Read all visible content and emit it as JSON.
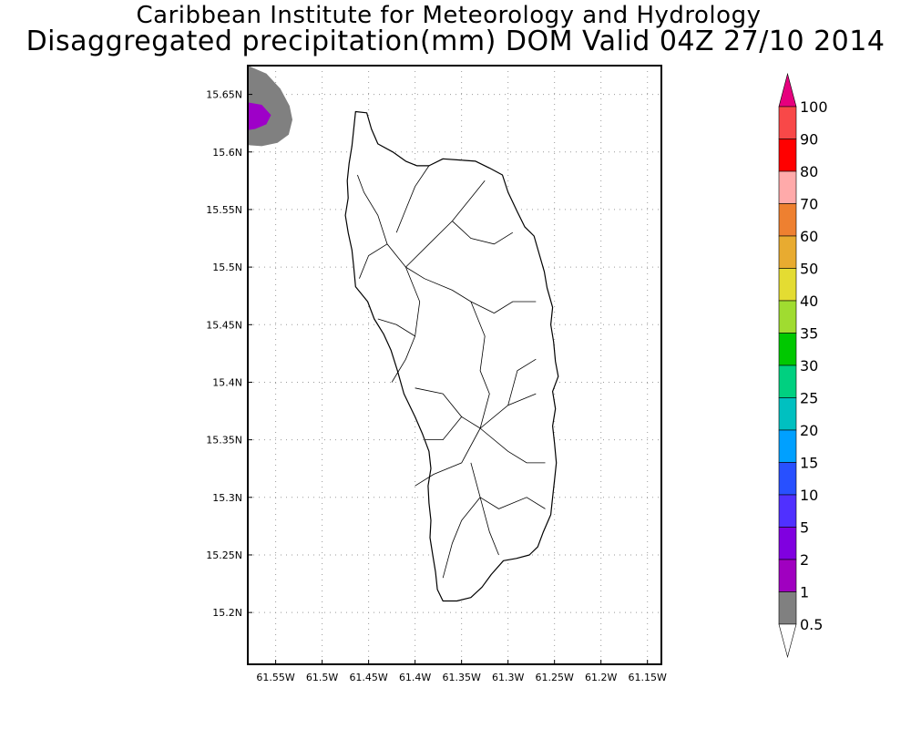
{
  "header": {
    "title_line1": "Caribbean Institute for Meteorology and Hydrology",
    "title_line2": "Disaggregated precipitation(mm) DOM Valid 04Z 27/10 2014"
  },
  "map": {
    "region": "Dominica",
    "lon_range": [
      -61.58,
      -61.135
    ],
    "lat_range": [
      15.155,
      15.675
    ],
    "lat_ticks": [
      {
        "value": 15.65,
        "label": "15.65N"
      },
      {
        "value": 15.6,
        "label": "15.6N"
      },
      {
        "value": 15.55,
        "label": "15.55N"
      },
      {
        "value": 15.5,
        "label": "15.5N"
      },
      {
        "value": 15.45,
        "label": "15.45N"
      },
      {
        "value": 15.4,
        "label": "15.4N"
      },
      {
        "value": 15.35,
        "label": "15.35N"
      },
      {
        "value": 15.3,
        "label": "15.3N"
      },
      {
        "value": 15.25,
        "label": "15.25N"
      },
      {
        "value": 15.2,
        "label": "15.2N"
      }
    ],
    "lon_ticks": [
      {
        "value": -61.55,
        "label": "61.55W"
      },
      {
        "value": -61.5,
        "label": "61.5W"
      },
      {
        "value": -61.45,
        "label": "61.45W"
      },
      {
        "value": -61.4,
        "label": "61.4W"
      },
      {
        "value": -61.35,
        "label": "61.35W"
      },
      {
        "value": -61.3,
        "label": "61.3W"
      },
      {
        "value": -61.25,
        "label": "61.25W"
      },
      {
        "value": -61.2,
        "label": "61.2W"
      },
      {
        "value": -61.15,
        "label": "61.15W"
      }
    ],
    "grid": "dotted",
    "precip_areas": [
      {
        "threshold_mm": 0.5,
        "color": "#808080",
        "outline": [
          [
            -61.58,
            15.675
          ],
          [
            -61.56,
            15.668
          ],
          [
            -61.545,
            15.655
          ],
          [
            -61.535,
            15.64
          ],
          [
            -61.532,
            15.628
          ],
          [
            -61.536,
            15.615
          ],
          [
            -61.548,
            15.608
          ],
          [
            -61.565,
            15.605
          ],
          [
            -61.58,
            15.606
          ]
        ]
      },
      {
        "threshold_mm": 1,
        "color": "#9e00c8",
        "outline": [
          [
            -61.58,
            15.643
          ],
          [
            -61.565,
            15.641
          ],
          [
            -61.555,
            15.632
          ],
          [
            -61.56,
            15.624
          ],
          [
            -61.572,
            15.62
          ],
          [
            -61.58,
            15.619
          ]
        ]
      }
    ],
    "island_outline": [
      [
        -61.464,
        15.635
      ],
      [
        -61.452,
        15.634
      ],
      [
        -61.447,
        15.62
      ],
      [
        -61.44,
        15.607
      ],
      [
        -61.424,
        15.6
      ],
      [
        -61.41,
        15.592
      ],
      [
        -61.398,
        15.588
      ],
      [
        -61.385,
        15.588
      ],
      [
        -61.37,
        15.594
      ],
      [
        -61.352,
        15.593
      ],
      [
        -61.335,
        15.592
      ],
      [
        -61.32,
        15.586
      ],
      [
        -61.306,
        15.58
      ],
      [
        -61.3,
        15.565
      ],
      [
        -61.29,
        15.548
      ],
      [
        -61.282,
        15.535
      ],
      [
        -61.272,
        15.527
      ],
      [
        -61.266,
        15.51
      ],
      [
        -61.261,
        15.496
      ],
      [
        -61.258,
        15.482
      ],
      [
        -61.252,
        15.465
      ],
      [
        -61.254,
        15.45
      ],
      [
        -61.251,
        15.435
      ],
      [
        -61.249,
        15.418
      ],
      [
        -61.246,
        15.405
      ],
      [
        -61.252,
        15.392
      ],
      [
        -61.249,
        15.377
      ],
      [
        -61.252,
        15.362
      ],
      [
        -61.25,
        15.347
      ],
      [
        -61.248,
        15.33
      ],
      [
        -61.25,
        15.315
      ],
      [
        -61.252,
        15.3
      ],
      [
        -61.254,
        15.285
      ],
      [
        -61.262,
        15.27
      ],
      [
        -61.268,
        15.257
      ],
      [
        -61.277,
        15.25
      ],
      [
        -61.291,
        15.247
      ],
      [
        -61.305,
        15.245
      ],
      [
        -61.318,
        15.233
      ],
      [
        -61.328,
        15.222
      ],
      [
        -61.34,
        15.213
      ],
      [
        -61.355,
        15.21
      ],
      [
        -61.37,
        15.21
      ],
      [
        -61.376,
        15.22
      ],
      [
        -61.378,
        15.235
      ],
      [
        -61.381,
        15.25
      ],
      [
        -61.384,
        15.265
      ],
      [
        -61.383,
        15.28
      ],
      [
        -61.385,
        15.295
      ],
      [
        -61.386,
        15.31
      ],
      [
        -61.383,
        15.325
      ],
      [
        -61.385,
        15.34
      ],
      [
        -61.392,
        15.355
      ],
      [
        -61.4,
        15.37
      ],
      [
        -61.412,
        15.39
      ],
      [
        -61.419,
        15.41
      ],
      [
        -61.426,
        15.428
      ],
      [
        -61.434,
        15.442
      ],
      [
        -61.444,
        15.455
      ],
      [
        -61.451,
        15.47
      ],
      [
        -61.464,
        15.483
      ],
      [
        -61.466,
        15.5
      ],
      [
        -61.468,
        15.515
      ],
      [
        -61.472,
        15.53
      ],
      [
        -61.475,
        15.545
      ],
      [
        -61.472,
        15.56
      ],
      [
        -61.473,
        15.575
      ],
      [
        -61.471,
        15.59
      ],
      [
        -61.468,
        15.605
      ],
      [
        -61.466,
        15.62
      ],
      [
        -61.464,
        15.635
      ]
    ],
    "internal_boundaries": [
      [
        [
          -61.41,
          15.5
        ],
        [
          -61.43,
          15.52
        ],
        [
          -61.44,
          15.545
        ],
        [
          -61.455,
          15.565
        ],
        [
          -61.462,
          15.58
        ]
      ],
      [
        [
          -61.41,
          15.5
        ],
        [
          -61.385,
          15.52
        ],
        [
          -61.36,
          15.54
        ],
        [
          -61.34,
          15.56
        ],
        [
          -61.325,
          15.575
        ]
      ],
      [
        [
          -61.41,
          15.5
        ],
        [
          -61.395,
          15.47
        ],
        [
          -61.4,
          15.44
        ],
        [
          -61.41,
          15.42
        ],
        [
          -61.425,
          15.4
        ]
      ],
      [
        [
          -61.41,
          15.5
        ],
        [
          -61.39,
          15.49
        ],
        [
          -61.36,
          15.48
        ],
        [
          -61.34,
          15.47
        ],
        [
          -61.315,
          15.46
        ]
      ],
      [
        [
          -61.34,
          15.47
        ],
        [
          -61.325,
          15.44
        ],
        [
          -61.33,
          15.41
        ],
        [
          -61.32,
          15.39
        ],
        [
          -61.33,
          15.36
        ]
      ],
      [
        [
          -61.4,
          15.395
        ],
        [
          -61.37,
          15.39
        ],
        [
          -61.35,
          15.37
        ],
        [
          -61.33,
          15.36
        ],
        [
          -61.3,
          15.38
        ],
        [
          -61.27,
          15.39
        ]
      ],
      [
        [
          -61.33,
          15.36
        ],
        [
          -61.35,
          15.33
        ],
        [
          -61.38,
          15.32
        ],
        [
          -61.4,
          15.31
        ]
      ],
      [
        [
          -61.33,
          15.36
        ],
        [
          -61.3,
          15.34
        ],
        [
          -61.28,
          15.33
        ],
        [
          -61.26,
          15.33
        ]
      ],
      [
        [
          -61.34,
          15.33
        ],
        [
          -61.33,
          15.3
        ],
        [
          -61.35,
          15.28
        ],
        [
          -61.36,
          15.26
        ],
        [
          -61.37,
          15.23
        ]
      ],
      [
        [
          -61.33,
          15.3
        ],
        [
          -61.31,
          15.29
        ],
        [
          -61.28,
          15.3
        ],
        [
          -61.26,
          15.29
        ]
      ],
      [
        [
          -61.33,
          15.3
        ],
        [
          -61.32,
          15.27
        ],
        [
          -61.31,
          15.25
        ]
      ],
      [
        [
          -61.315,
          15.46
        ],
        [
          -61.295,
          15.47
        ],
        [
          -61.27,
          15.47
        ]
      ],
      [
        [
          -61.36,
          15.54
        ],
        [
          -61.34,
          15.525
        ],
        [
          -61.315,
          15.52
        ],
        [
          -61.295,
          15.53
        ]
      ],
      [
        [
          -61.43,
          15.52
        ],
        [
          -61.45,
          15.51
        ],
        [
          -61.46,
          15.49
        ]
      ],
      [
        [
          -61.4,
          15.44
        ],
        [
          -61.42,
          15.45
        ],
        [
          -61.44,
          15.455
        ]
      ],
      [
        [
          -61.35,
          15.37
        ],
        [
          -61.37,
          15.35
        ],
        [
          -61.39,
          15.35
        ]
      ],
      [
        [
          -61.3,
          15.38
        ],
        [
          -61.29,
          15.41
        ],
        [
          -61.27,
          15.42
        ]
      ],
      [
        [
          -61.385,
          15.588
        ],
        [
          -61.4,
          15.57
        ],
        [
          -61.41,
          15.55
        ],
        [
          -61.42,
          15.53
        ]
      ]
    ]
  },
  "colorbar": {
    "top_arrow_color": "#e6007e",
    "bottom_arrow_color": "#ffffff",
    "segments": [
      {
        "label": "100",
        "color": "#f84848"
      },
      {
        "label": "90",
        "color": "#ff0000"
      },
      {
        "label": "80",
        "color": "#ffaaaa"
      },
      {
        "label": "70",
        "color": "#ee8030"
      },
      {
        "label": "60",
        "color": "#e8ab30"
      },
      {
        "label": "50",
        "color": "#e4dc32"
      },
      {
        "label": "40",
        "color": "#a0dc30"
      },
      {
        "label": "35",
        "color": "#00c800"
      },
      {
        "label": "30",
        "color": "#00d080"
      },
      {
        "label": "25",
        "color": "#00c0c0"
      },
      {
        "label": "20",
        "color": "#00a0ff"
      },
      {
        "label": "15",
        "color": "#2850ff"
      },
      {
        "label": "10",
        "color": "#5030ff"
      },
      {
        "label": "5",
        "color": "#8000e0"
      },
      {
        "label": "2",
        "color": "#a000c0"
      },
      {
        "label": "1",
        "color": "#808080"
      }
    ],
    "bottom_label": "0.5"
  }
}
